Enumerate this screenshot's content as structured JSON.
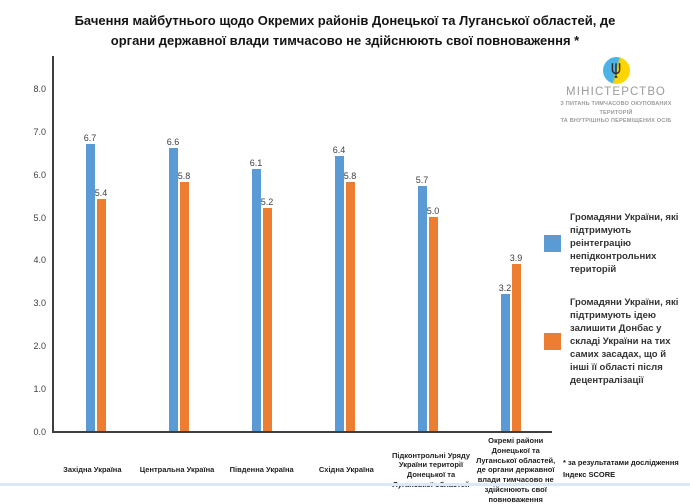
{
  "title": {
    "line1": "Бачення майбутнього щодо Окремих районів Донецької та Луганської областей, де",
    "line2": "органи державної влади тимчасово не здійснюють свої повноваження *"
  },
  "logo": {
    "name": "МІНІСТЕРСТВО",
    "sub1": "З ПИТАНЬ ТИМЧАСОВО ОКУПОВАНИХ ТЕРИТОРІЙ",
    "sub2": "ТА ВНУТРІШНЬО ПЕРЕМІЩЕНИХ ОСІБ",
    "emblem_icon": "trident-icon",
    "emblem_blue": "#4db3e6",
    "emblem_yellow": "#ffd500"
  },
  "footnote": {
    "line1": "* за результатами дослідження",
    "line2": "Індекс SCORE"
  },
  "chart_data": {
    "type": "bar",
    "title": "Бачення майбутнього щодо Окремих районів Донецької та Луганської областей, де органи державної влади тимчасово не здійснюють свої повноваження *",
    "categories": [
      "Західна Україна",
      "Центральна Україна",
      "Південна Україна",
      "Східна Україна",
      "Підконтрольні Уряду України території Донецької та Луганської областей",
      "Окремі райони Донецької та Луганської областей, де органи державної влади тимчасово не здійснюють свої повноваження"
    ],
    "series": [
      {
        "name": "Громадяни України, які підтримують реінтеграцію непідконтрольних територій",
        "color": "#5B9BD5",
        "values": [
          6.7,
          6.6,
          6.1,
          6.4,
          5.7,
          3.2
        ]
      },
      {
        "name": "Громадяни України, які підтримують ідею залишити Донбас у складі України на тих самих засадах, що й інші її області після децентралізації",
        "color": "#ED7D31",
        "values": [
          5.4,
          5.8,
          5.2,
          5.8,
          5.0,
          3.9
        ]
      }
    ],
    "xlabel": "",
    "ylabel": "",
    "ylim": [
      0,
      8
    ],
    "yticks": [
      "0.0",
      "1.0",
      "2.0",
      "3.0",
      "4.0",
      "5.0",
      "6.0",
      "7.0",
      "8.0"
    ],
    "grid": false,
    "legend_position": "right"
  }
}
